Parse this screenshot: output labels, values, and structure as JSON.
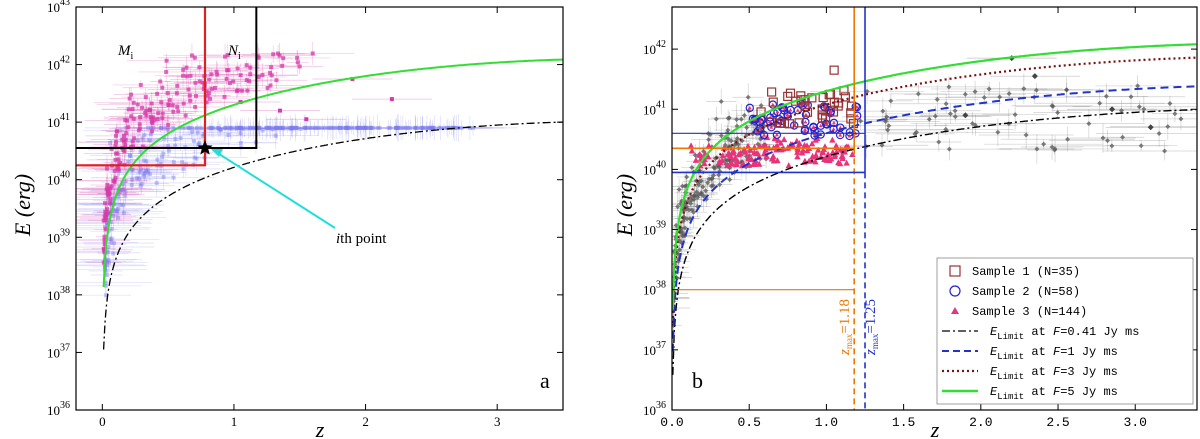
{
  "chart_data": [
    {
      "panel": "a",
      "type": "scatter",
      "xlabel": "z",
      "ylabel": "E (erg)",
      "xlim": [
        -0.2,
        3.5
      ],
      "ylim_log10": [
        36,
        43
      ],
      "x_ticks": [
        {
          "value": 0,
          "label": "0"
        },
        {
          "value": 1,
          "label": "1"
        },
        {
          "value": 2,
          "label": "2"
        },
        {
          "value": 3,
          "label": "3"
        }
      ],
      "y_ticks": [
        {
          "exp": 36,
          "base": "10",
          "sup": "36"
        },
        {
          "exp": 37,
          "base": "10",
          "sup": "37"
        },
        {
          "exp": 38,
          "base": "10",
          "sup": "38"
        },
        {
          "exp": 39,
          "base": "10",
          "sup": "39"
        },
        {
          "exp": 40,
          "base": "10",
          "sup": "40"
        },
        {
          "exp": 41,
          "base": "10",
          "sup": "41"
        },
        {
          "exp": 42,
          "base": "10",
          "sup": "42"
        },
        {
          "exp": 43,
          "base": "10",
          "sup": "43"
        }
      ],
      "series": [
        {
          "name": "selected sample (magenta)",
          "color": "#d63aa8",
          "count": 220
        },
        {
          "name": "other bursts (blue)",
          "color": "#7b7bef",
          "count": 320
        }
      ],
      "curves": [
        {
          "name": "E_Limit at F=5 Jy ms",
          "color": "#33dd33",
          "style": "solid",
          "F": 5
        },
        {
          "name": "E_Limit at F=0.41 Jy ms",
          "color": "#000000",
          "style": "dashdot",
          "F": 0.41
        }
      ],
      "ith_point": {
        "z": 0.78,
        "logE": 40.55
      },
      "box_black": {
        "z": 1.17,
        "logE": 40.55
      },
      "box_red_logE": 40.25,
      "labels": {
        "M_main": "M",
        "M_sub": "i",
        "N_main": "N",
        "N_sub": "i",
        "ith_italic": "i",
        "ith_rest": "th point",
        "letter": "a"
      }
    },
    {
      "panel": "b",
      "type": "scatter",
      "xlabel": "z",
      "ylabel": "E (erg)",
      "xlim": [
        0.0,
        3.4
      ],
      "ylim_log10": [
        36,
        42.7
      ],
      "x_ticks": [
        {
          "value": 0.0,
          "label": "0.0"
        },
        {
          "value": 0.5,
          "label": "0.5"
        },
        {
          "value": 1.0,
          "label": "1.0"
        },
        {
          "value": 1.5,
          "label": "1.5"
        },
        {
          "value": 2.0,
          "label": "2.0"
        },
        {
          "value": 2.5,
          "label": "2.5"
        },
        {
          "value": 3.0,
          "label": "3.0"
        }
      ],
      "y_ticks": [
        {
          "exp": 36,
          "base": "10",
          "sup": "36"
        },
        {
          "exp": 37,
          "base": "10",
          "sup": "37"
        },
        {
          "exp": 38,
          "base": "10",
          "sup": "38"
        },
        {
          "exp": 39,
          "base": "10",
          "sup": "39"
        },
        {
          "exp": 40,
          "base": "10",
          "sup": "40"
        },
        {
          "exp": 41,
          "base": "10",
          "sup": "41"
        },
        {
          "exp": 42,
          "base": "10",
          "sup": "42"
        }
      ],
      "series": [
        {
          "name": "Sample 1 (N=35)",
          "marker": "square",
          "color": "#993333",
          "count": 35
        },
        {
          "name": "Sample 2 (N=58)",
          "marker": "circle",
          "color": "#2222cc",
          "count": 58
        },
        {
          "name": "Sample 3 (N=144)",
          "marker": "triangle",
          "color": "#e8337a",
          "count": 144
        },
        {
          "name": "all bursts (grey)",
          "marker": "diamond",
          "color": "#666666",
          "count": 260
        }
      ],
      "curves": [
        {
          "name": "E_Limit at F=0.41 Jy ms",
          "color": "#000000",
          "style": "dashdot",
          "F": 0.41
        },
        {
          "name": "E_Limit at F=1 Jy ms",
          "color": "#2233cc",
          "style": "dashed",
          "F": 1
        },
        {
          "name": "E_Limit at F=3 Jy ms",
          "color": "#7a1010",
          "style": "dotted",
          "F": 3
        },
        {
          "name": "E_Limit at F=5 Jy ms",
          "color": "#33dd33",
          "style": "solid",
          "F": 5
        }
      ],
      "zmax_lines": [
        {
          "z": 1.18,
          "logE": 40.35,
          "color": "#ee7700",
          "label_main": "z",
          "label_sub": "max",
          "label_val": "=1.18"
        },
        {
          "z": 1.25,
          "logE": 39.95,
          "color": "#2233cc",
          "label_main": "z",
          "label_sub": "max",
          "label_val": "=1.25"
        }
      ],
      "legend": [
        {
          "text": "Sample 1 (N=35)",
          "marker": "square"
        },
        {
          "text": "Sample 2 (N=58)",
          "marker": "circle"
        },
        {
          "text": "Sample 3 (N=144)",
          "marker": "triangle"
        },
        {
          "pre": "E",
          "sub": "Limit",
          "mid": " at ",
          "f": "F",
          "post": "=0.41 Jy ms",
          "line": "dashdot"
        },
        {
          "pre": "E",
          "sub": "Limit",
          "mid": " at ",
          "f": "F",
          "post": "=1 Jy ms",
          "line": "dashed"
        },
        {
          "pre": "E",
          "sub": "Limit",
          "mid": " at ",
          "f": "F",
          "post": "=3 Jy ms",
          "line": "dotted"
        },
        {
          "pre": "E",
          "sub": "Limit",
          "mid": " at ",
          "f": "F",
          "post": "=5 Jy ms",
          "line": "solid"
        }
      ],
      "labels": {
        "letter": "b"
      }
    }
  ]
}
